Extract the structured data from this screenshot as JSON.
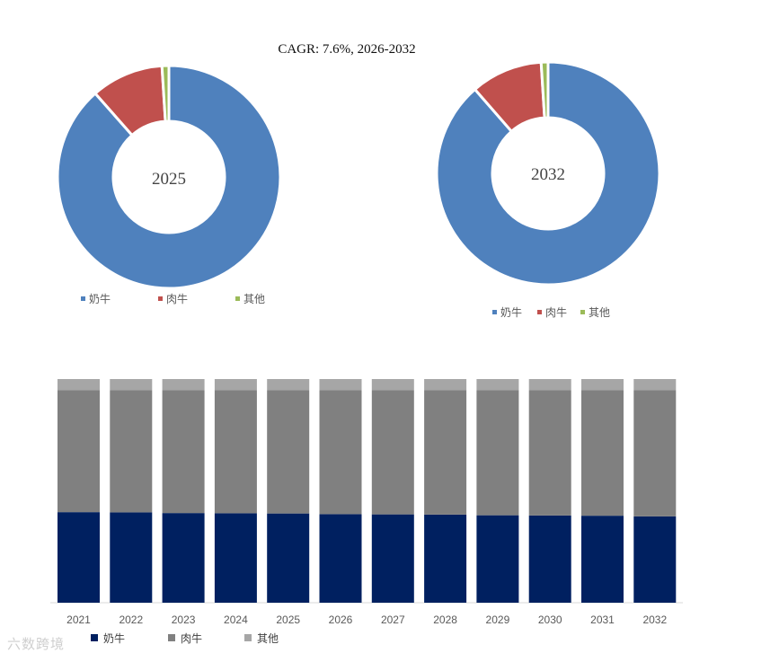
{
  "chart_data": [
    {
      "type": "pie",
      "subtype": "donut",
      "title": "CAGR:   7.6%, 2026-2032",
      "center_label": "2025",
      "legend_position": "bottom",
      "categories": [
        "奶牛",
        "肉牛",
        "其他"
      ],
      "values": [
        88.5,
        10.5,
        1.0
      ],
      "colors": [
        "#4f81bd",
        "#c0504d",
        "#9bbb59"
      ]
    },
    {
      "type": "pie",
      "subtype": "donut",
      "center_label": "2032",
      "legend_position": "bottom",
      "categories": [
        "奶牛",
        "肉牛",
        "其他"
      ],
      "values": [
        88.6,
        10.4,
        1.0
      ],
      "colors": [
        "#4f81bd",
        "#c0504d",
        "#9bbb59"
      ]
    },
    {
      "type": "bar",
      "stacked": true,
      "normalized": true,
      "legend_position": "bottom",
      "categories": [
        "2021",
        "2022",
        "2023",
        "2024",
        "2025",
        "2026",
        "2027",
        "2028",
        "2029",
        "2030",
        "2031",
        "2032"
      ],
      "ylim": [
        0,
        100
      ],
      "series": [
        {
          "name": "奶牛",
          "color": "#002060",
          "values": [
            40.5,
            40.4,
            40.1,
            40.0,
            39.9,
            39.6,
            39.5,
            39.4,
            39.1,
            39.0,
            38.9,
            38.6
          ]
        },
        {
          "name": "肉牛",
          "color": "#808080",
          "values": [
            54.5,
            54.6,
            54.9,
            55.0,
            55.1,
            55.4,
            55.5,
            55.6,
            55.9,
            56.0,
            56.1,
            56.4
          ]
        },
        {
          "name": "其他",
          "color": "#a6a6a6",
          "values": [
            5.0,
            5.0,
            5.0,
            5.0,
            5.0,
            5.0,
            5.0,
            5.0,
            5.0,
            5.0,
            5.0,
            5.0
          ]
        }
      ]
    }
  ],
  "watermark": "六数跨境"
}
